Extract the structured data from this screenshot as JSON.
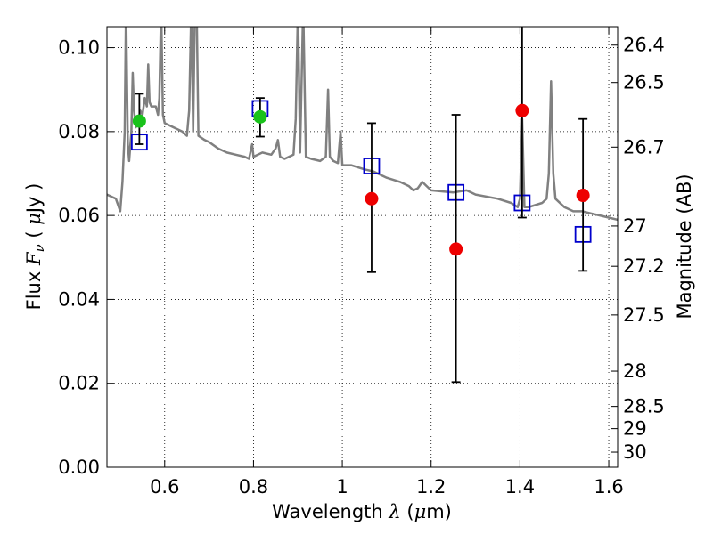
{
  "chart_data": {
    "type": "scatter",
    "xlabel": {
      "prefix": "Wavelength ",
      "symbol": "λ",
      "units": " (",
      "mu": "μ",
      "unit_tail": "m)"
    },
    "ylabel": {
      "prefix": "Flux  ",
      "symbol": "F",
      "sub": "ν",
      "units": "  ( ",
      "mu": "μ",
      "unit_tail": "Jy )"
    },
    "y2label": "Magnitude (AB)",
    "xlim": [
      0.47,
      1.62
    ],
    "ylim": [
      0.0,
      0.105
    ],
    "x_ticks": [
      {
        "value": 0.6,
        "label": "0.6"
      },
      {
        "value": 0.8,
        "label": "0.8"
      },
      {
        "value": 1.0,
        "label": "1"
      },
      {
        "value": 1.2,
        "label": "1.2"
      },
      {
        "value": 1.4,
        "label": "1.4"
      },
      {
        "value": 1.6,
        "label": "1.6"
      }
    ],
    "y_ticks": [
      {
        "value": 0.0,
        "label": "0.00"
      },
      {
        "value": 0.02,
        "label": "0.02"
      },
      {
        "value": 0.04,
        "label": "0.04"
      },
      {
        "value": 0.06,
        "label": "0.06"
      },
      {
        "value": 0.08,
        "label": "0.08"
      },
      {
        "value": 0.1,
        "label": "0.10"
      }
    ],
    "mag_ticks": [
      {
        "flux": 0.1006,
        "label": "26.4"
      },
      {
        "flux": 0.0917,
        "label": "26.5"
      },
      {
        "flux": 0.0763,
        "label": "26.7"
      },
      {
        "flux": 0.0575,
        "label": "27"
      },
      {
        "flux": 0.0479,
        "label": "27.2"
      },
      {
        "flux": 0.0363,
        "label": "27.5"
      },
      {
        "flux": 0.0229,
        "label": "28"
      },
      {
        "flux": 0.0145,
        "label": "28.5"
      },
      {
        "flux": 0.0092,
        "label": "29"
      },
      {
        "flux": 0.0036,
        "label": "30"
      }
    ],
    "grid": true,
    "series": [
      {
        "name": "template-spectrum",
        "type": "line",
        "color": "#808080",
        "points": [
          [
            0.47,
            0.065
          ],
          [
            0.49,
            0.064
          ],
          [
            0.5,
            0.061
          ],
          [
            0.505,
            0.068
          ],
          [
            0.51,
            0.08
          ],
          [
            0.513,
            0.11
          ],
          [
            0.517,
            0.077
          ],
          [
            0.52,
            0.073
          ],
          [
            0.525,
            0.08
          ],
          [
            0.528,
            0.094
          ],
          [
            0.531,
            0.085
          ],
          [
            0.535,
            0.081
          ],
          [
            0.54,
            0.082
          ],
          [
            0.545,
            0.085
          ],
          [
            0.55,
            0.084
          ],
          [
            0.555,
            0.088
          ],
          [
            0.56,
            0.086
          ],
          [
            0.563,
            0.096
          ],
          [
            0.566,
            0.087
          ],
          [
            0.57,
            0.086
          ],
          [
            0.58,
            0.086
          ],
          [
            0.585,
            0.084
          ],
          [
            0.588,
            0.088
          ],
          [
            0.592,
            0.11
          ],
          [
            0.596,
            0.084
          ],
          [
            0.6,
            0.082
          ],
          [
            0.62,
            0.081
          ],
          [
            0.64,
            0.08
          ],
          [
            0.65,
            0.079
          ],
          [
            0.655,
            0.085
          ],
          [
            0.66,
            0.11
          ],
          [
            0.664,
            0.08
          ],
          [
            0.668,
            0.11
          ],
          [
            0.672,
            0.11
          ],
          [
            0.676,
            0.079
          ],
          [
            0.69,
            0.078
          ],
          [
            0.7,
            0.0775
          ],
          [
            0.72,
            0.076
          ],
          [
            0.74,
            0.075
          ],
          [
            0.76,
            0.0745
          ],
          [
            0.78,
            0.074
          ],
          [
            0.79,
            0.0735
          ],
          [
            0.797,
            0.077
          ],
          [
            0.8,
            0.074
          ],
          [
            0.82,
            0.075
          ],
          [
            0.84,
            0.0745
          ],
          [
            0.85,
            0.076
          ],
          [
            0.855,
            0.078
          ],
          [
            0.86,
            0.074
          ],
          [
            0.87,
            0.0735
          ],
          [
            0.88,
            0.074
          ],
          [
            0.89,
            0.0745
          ],
          [
            0.895,
            0.083
          ],
          [
            0.9,
            0.11
          ],
          [
            0.905,
            0.075
          ],
          [
            0.912,
            0.11
          ],
          [
            0.918,
            0.074
          ],
          [
            0.93,
            0.0735
          ],
          [
            0.95,
            0.073
          ],
          [
            0.963,
            0.074
          ],
          [
            0.968,
            0.09
          ],
          [
            0.972,
            0.074
          ],
          [
            0.98,
            0.073
          ],
          [
            0.99,
            0.0725
          ],
          [
            0.996,
            0.08
          ],
          [
            1.0,
            0.072
          ],
          [
            1.02,
            0.072
          ],
          [
            1.05,
            0.071
          ],
          [
            1.07,
            0.0705
          ],
          [
            1.08,
            0.07
          ],
          [
            1.1,
            0.069
          ],
          [
            1.13,
            0.068
          ],
          [
            1.15,
            0.067
          ],
          [
            1.16,
            0.066
          ],
          [
            1.17,
            0.0665
          ],
          [
            1.18,
            0.068
          ],
          [
            1.19,
            0.067
          ],
          [
            1.2,
            0.066
          ],
          [
            1.25,
            0.0655
          ],
          [
            1.28,
            0.066
          ],
          [
            1.3,
            0.065
          ],
          [
            1.35,
            0.064
          ],
          [
            1.38,
            0.063
          ],
          [
            1.395,
            0.062
          ],
          [
            1.4,
            0.064
          ],
          [
            1.405,
            0.083
          ],
          [
            1.41,
            0.062
          ],
          [
            1.42,
            0.062
          ],
          [
            1.45,
            0.063
          ],
          [
            1.46,
            0.064
          ],
          [
            1.465,
            0.07
          ],
          [
            1.47,
            0.092
          ],
          [
            1.475,
            0.07
          ],
          [
            1.48,
            0.064
          ],
          [
            1.5,
            0.062
          ],
          [
            1.52,
            0.061
          ],
          [
            1.54,
            0.061
          ],
          [
            1.56,
            0.0605
          ],
          [
            1.58,
            0.06
          ],
          [
            1.6,
            0.0595
          ],
          [
            1.62,
            0.059
          ]
        ]
      },
      {
        "name": "model-flux",
        "type": "marker",
        "marker": "open-square",
        "color": "#0000cc",
        "points": [
          [
            0.543,
            0.0775
          ],
          [
            0.815,
            0.0855
          ],
          [
            1.066,
            0.0718
          ],
          [
            1.256,
            0.0655
          ],
          [
            1.405,
            0.063
          ],
          [
            1.542,
            0.0555
          ]
        ]
      },
      {
        "name": "observed-flux-detected",
        "type": "marker",
        "marker": "filled-circle",
        "color": "#19c21b",
        "points": [
          {
            "x": 0.543,
            "y": 0.0825,
            "err_low": 0.077,
            "err_high": 0.089
          },
          {
            "x": 0.815,
            "y": 0.0835,
            "err_low": 0.0788,
            "err_high": 0.088
          }
        ]
      },
      {
        "name": "observed-flux-nondetected",
        "type": "marker",
        "marker": "filled-circle",
        "color": "#ee0000",
        "points": [
          {
            "x": 1.066,
            "y": 0.064,
            "err_low": 0.0465,
            "err_high": 0.082
          },
          {
            "x": 1.256,
            "y": 0.052,
            "err_low": 0.0203,
            "err_high": 0.084
          },
          {
            "x": 1.405,
            "y": 0.085,
            "err_low": 0.0595,
            "err_high": 0.11
          },
          {
            "x": 1.542,
            "y": 0.0648,
            "err_low": 0.0468,
            "err_high": 0.083
          }
        ]
      }
    ]
  }
}
